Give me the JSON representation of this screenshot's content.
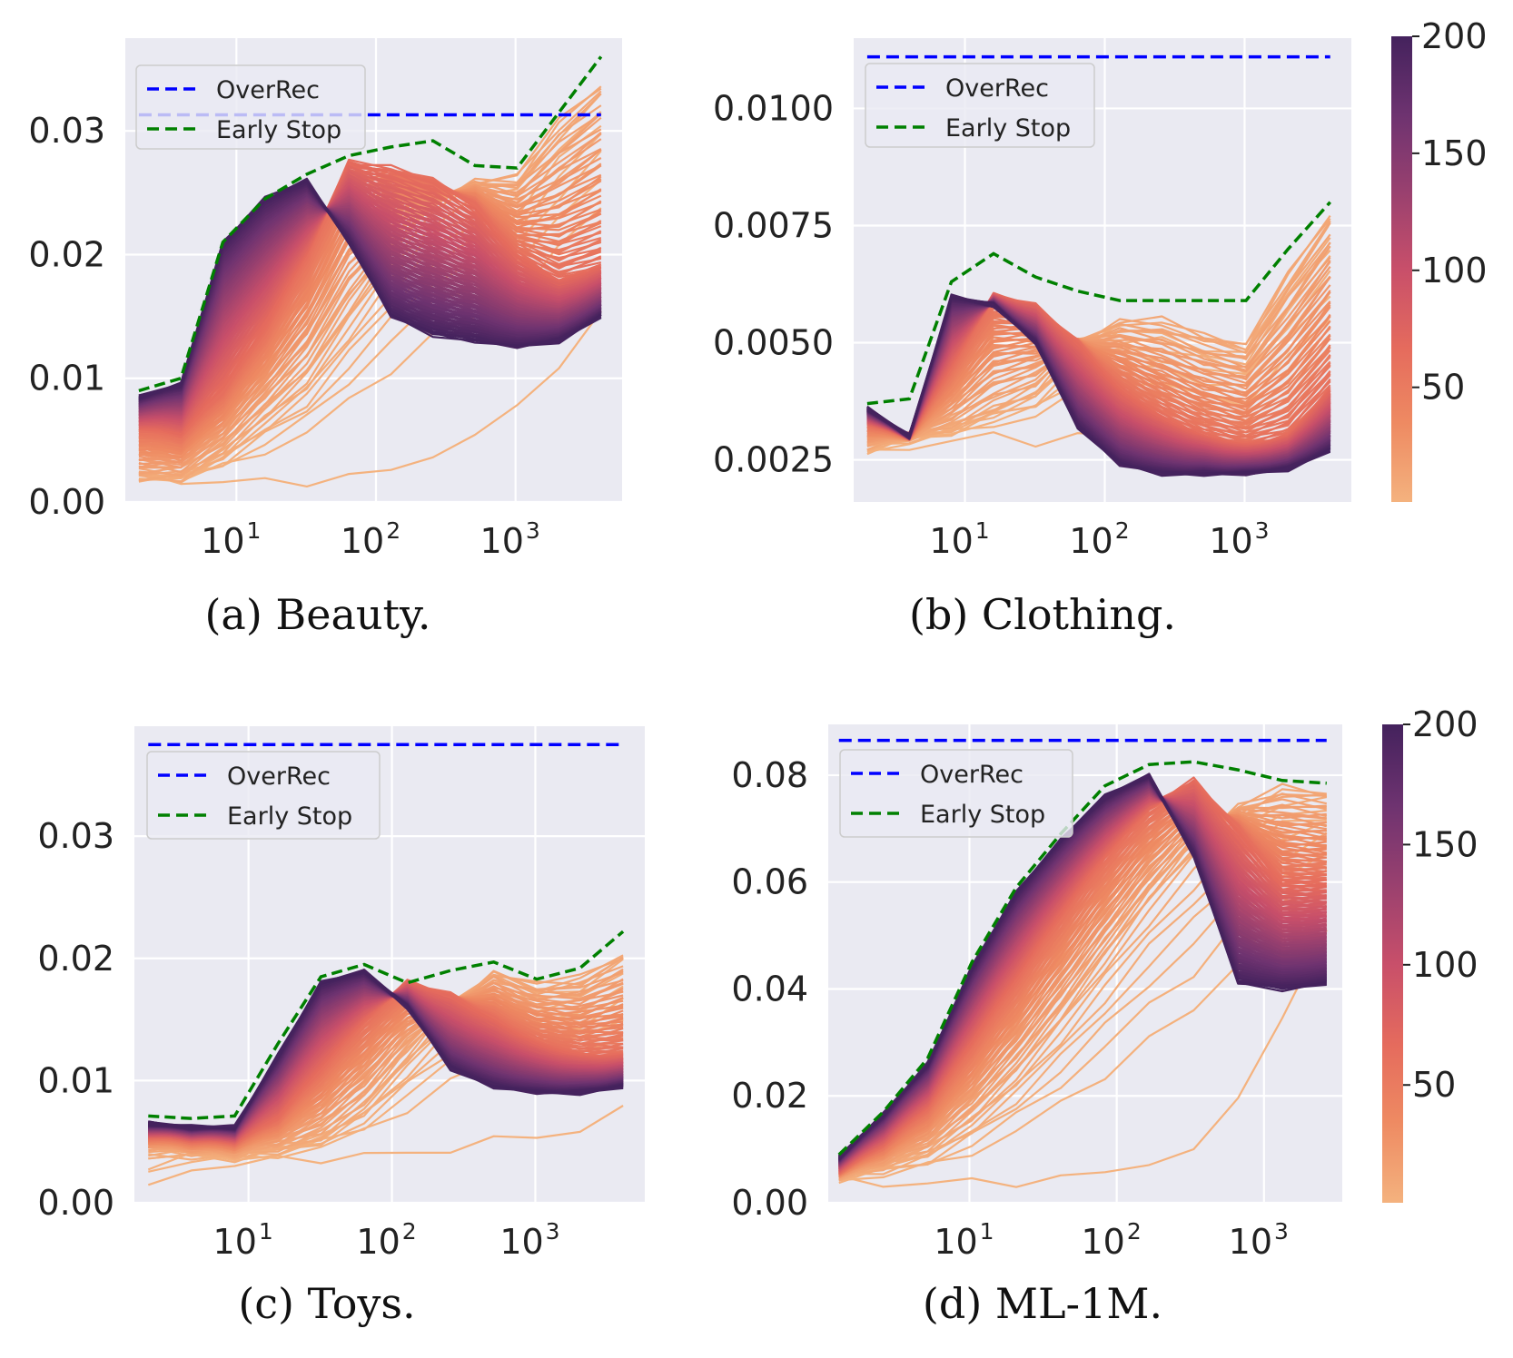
{
  "colorbar": {
    "ticks": [
      50,
      100,
      150,
      200
    ],
    "range": [
      1,
      200
    ],
    "colors": [
      "#f4b27e",
      "#ee8a62",
      "#e56b5d",
      "#c84f6a",
      "#98406f",
      "#6e3370",
      "#44225d"
    ]
  },
  "chart_data": [
    {
      "type": "line",
      "caption": "(a)  Beauty.",
      "x_scale": "log",
      "xlim": [
        1.6,
        5800
      ],
      "ylim": [
        0.0,
        0.0375
      ],
      "yticks": [
        0.0,
        0.01,
        0.02,
        0.03
      ],
      "ytick_labels": [
        "0.00",
        "0.01",
        "0.02",
        "0.03"
      ],
      "xtick_labels": [
        "10",
        "10",
        "10"
      ],
      "xtick_exponents": [
        "1",
        "2",
        "3"
      ],
      "legend": [
        "OverRec",
        "Early Stop"
      ],
      "legend_position": "upper-left",
      "grid": true,
      "overrec": 0.0313,
      "early_stop": {
        "x": [
          2,
          4,
          8,
          16,
          32,
          64,
          128,
          256,
          512,
          1024,
          2048,
          4096
        ],
        "y": [
          0.009,
          0.01,
          0.021,
          0.0245,
          0.0265,
          0.028,
          0.0287,
          0.0292,
          0.0272,
          0.027,
          0.0315,
          0.036
        ]
      },
      "epoch_curves": {
        "x": [
          2,
          4,
          8,
          16,
          32,
          64,
          128,
          256,
          512,
          1024,
          2048,
          4096
        ],
        "peak_start": [
          0.0085,
          0.0095,
          0.021,
          0.0245,
          0.026,
          0.021,
          0.015,
          0.0135,
          0.013,
          0.0125,
          0.013,
          0.015
        ],
        "mid_peak": [
          0.006,
          0.0055,
          0.009,
          0.014,
          0.02,
          0.0275,
          0.027,
          0.026,
          0.024,
          0.02,
          0.018,
          0.019
        ],
        "late_peak": [
          0.002,
          0.002,
          0.004,
          0.007,
          0.01,
          0.015,
          0.02,
          0.024,
          0.026,
          0.0265,
          0.031,
          0.034
        ],
        "slowest": [
          0.002,
          0.0018,
          0.0016,
          0.0016,
          0.0017,
          0.002,
          0.0025,
          0.004,
          0.005,
          0.008,
          0.011,
          0.015
        ]
      }
    },
    {
      "type": "line",
      "caption": "(b)  Clothing.",
      "x_scale": "log",
      "xlim": [
        1.6,
        5800
      ],
      "ylim": [
        0.0016,
        0.0115
      ],
      "yticks": [
        0.0025,
        0.005,
        0.0075,
        0.01
      ],
      "ytick_labels": [
        "0.0025",
        "0.0050",
        "0.0075",
        "0.0100"
      ],
      "xtick_labels": [
        "10",
        "10",
        "10"
      ],
      "xtick_exponents": [
        "1",
        "2",
        "3"
      ],
      "legend": [
        "OverRec",
        "Early Stop"
      ],
      "legend_position": "upper-left",
      "grid": true,
      "overrec": 0.0111,
      "early_stop": {
        "x": [
          2,
          4,
          8,
          16,
          32,
          64,
          128,
          256,
          512,
          1024,
          2048,
          4096
        ],
        "y": [
          0.0037,
          0.0038,
          0.0063,
          0.0069,
          0.0064,
          0.0061,
          0.0059,
          0.0059,
          0.0059,
          0.0059,
          0.007,
          0.008
        ]
      },
      "epoch_curves": {
        "x": [
          2,
          4,
          8,
          16,
          32,
          64,
          128,
          256,
          512,
          1024,
          2048,
          4096
        ],
        "peak_start": [
          0.0036,
          0.003,
          0.006,
          0.0058,
          0.005,
          0.0032,
          0.0024,
          0.0022,
          0.0022,
          0.0022,
          0.0023,
          0.0027
        ],
        "mid_peak": [
          0.0033,
          0.003,
          0.0045,
          0.006,
          0.0058,
          0.005,
          0.004,
          0.0034,
          0.003,
          0.0028,
          0.003,
          0.004
        ],
        "late_peak": [
          0.0028,
          0.003,
          0.0032,
          0.0036,
          0.004,
          0.005,
          0.0055,
          0.0055,
          0.0052,
          0.005,
          0.0065,
          0.0078
        ],
        "slowest": [
          0.0026,
          0.0028,
          0.0029,
          0.003,
          0.0029,
          0.003,
          0.003,
          0.0028,
          0.0027,
          0.0026,
          0.003,
          0.0035
        ]
      }
    },
    {
      "type": "line",
      "caption": "(c)  Toys.",
      "x_scale": "log",
      "xlim": [
        1.6,
        5800
      ],
      "ylim": [
        0.0,
        0.039
      ],
      "yticks": [
        0.0,
        0.01,
        0.02,
        0.03
      ],
      "ytick_labels": [
        "0.00",
        "0.01",
        "0.02",
        "0.03"
      ],
      "xtick_labels": [
        "10",
        "10",
        "10"
      ],
      "xtick_exponents": [
        "1",
        "2",
        "3"
      ],
      "legend": [
        "OverRec",
        "Early Stop"
      ],
      "legend_position": "upper-left",
      "grid": true,
      "overrec": 0.0375,
      "early_stop": {
        "x": [
          2,
          4,
          8,
          16,
          32,
          64,
          128,
          256,
          512,
          1024,
          2048,
          4096
        ],
        "y": [
          0.0071,
          0.0069,
          0.0071,
          0.013,
          0.0185,
          0.0195,
          0.018,
          0.019,
          0.0197,
          0.0183,
          0.0192,
          0.0222
        ]
      },
      "epoch_curves": {
        "x": [
          2,
          4,
          8,
          16,
          32,
          64,
          128,
          256,
          512,
          1024,
          2048,
          4096
        ],
        "peak_start": [
          0.0065,
          0.0062,
          0.0062,
          0.012,
          0.018,
          0.019,
          0.016,
          0.011,
          0.0095,
          0.009,
          0.009,
          0.0095
        ],
        "mid_peak": [
          0.0055,
          0.0052,
          0.005,
          0.007,
          0.011,
          0.015,
          0.018,
          0.017,
          0.015,
          0.013,
          0.012,
          0.012
        ],
        "late_peak": [
          0.0045,
          0.0042,
          0.004,
          0.0045,
          0.0055,
          0.008,
          0.012,
          0.016,
          0.019,
          0.018,
          0.0185,
          0.0205
        ],
        "slowest": [
          0.001,
          0.003,
          0.003,
          0.0035,
          0.0037,
          0.0038,
          0.004,
          0.0045,
          0.005,
          0.0055,
          0.006,
          0.0075
        ]
      }
    },
    {
      "type": "line",
      "caption": "(d)  ML-1M.",
      "x_scale": "log",
      "xlim": [
        1.1,
        3400
      ],
      "ylim": [
        0.0,
        0.0895
      ],
      "yticks": [
        0.0,
        0.02,
        0.04,
        0.06,
        0.08
      ],
      "ytick_labels": [
        "0.00",
        "0.02",
        "0.04",
        "0.06",
        "0.08"
      ],
      "xtick_labels": [
        "10",
        "10",
        "10"
      ],
      "xtick_exponents": [
        "1",
        "2",
        "3"
      ],
      "legend": [
        "OverRec",
        "Early Stop"
      ],
      "legend_position": "upper-left",
      "grid": true,
      "overrec": 0.0865,
      "early_stop": {
        "x": [
          1.3,
          2.6,
          5.2,
          10.4,
          20.8,
          41.6,
          83.2,
          166,
          333,
          666,
          1331,
          2662
        ],
        "y": [
          0.009,
          0.017,
          0.027,
          0.045,
          0.059,
          0.069,
          0.078,
          0.082,
          0.0825,
          0.081,
          0.079,
          0.0785
        ]
      },
      "epoch_curves": {
        "x": [
          1.3,
          2.6,
          5.2,
          10.4,
          20.8,
          41.6,
          83.2,
          166,
          333,
          666,
          1331,
          2662
        ],
        "peak_start": [
          0.0085,
          0.0165,
          0.026,
          0.044,
          0.058,
          0.068,
          0.076,
          0.08,
          0.065,
          0.041,
          0.04,
          0.041
        ],
        "mid_peak": [
          0.006,
          0.011,
          0.018,
          0.03,
          0.042,
          0.054,
          0.065,
          0.074,
          0.079,
          0.07,
          0.06,
          0.06
        ],
        "late_peak": [
          0.005,
          0.007,
          0.01,
          0.016,
          0.024,
          0.034,
          0.045,
          0.056,
          0.066,
          0.074,
          0.078,
          0.077
        ],
        "slowest": [
          0.004,
          0.0038,
          0.0036,
          0.0038,
          0.004,
          0.0045,
          0.0055,
          0.008,
          0.009,
          0.02,
          0.035,
          0.05
        ]
      }
    }
  ]
}
